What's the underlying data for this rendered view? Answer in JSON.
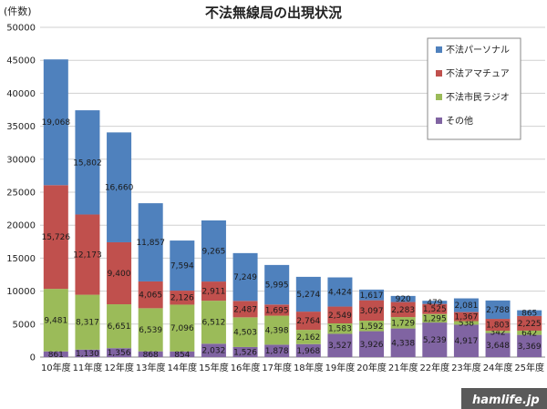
{
  "chart_data": {
    "type": "bar",
    "stacked": true,
    "title": "不法無線局の出現状況",
    "ylabel": "(件数)",
    "xlabel": "",
    "ylim": [
      0,
      50000
    ],
    "yticks": [
      0,
      5000,
      10000,
      15000,
      20000,
      25000,
      30000,
      35000,
      40000,
      45000,
      50000
    ],
    "grid": true,
    "legend_position": "top-right",
    "categories": [
      "10年度",
      "11年度",
      "12年度",
      "13年度",
      "14年度",
      "15年度",
      "16年度",
      "17年度",
      "18年度",
      "19年度",
      "20年度",
      "21年度",
      "22年度",
      "23年度",
      "24年度",
      "25年度"
    ],
    "series": [
      {
        "name": "その他",
        "color": "#8064a2",
        "values": [
          861,
          1130,
          1356,
          868,
          854,
          2032,
          1526,
          1878,
          1968,
          3527,
          3926,
          4338,
          5239,
          4917,
          3648,
          3369
        ]
      },
      {
        "name": "不法市民ラジオ",
        "color": "#9bbb59",
        "values": [
          9481,
          8317,
          6651,
          6539,
          7096,
          6512,
          4503,
          4398,
          2162,
          1583,
          1592,
          1729,
          1295,
          538,
          342,
          642
        ]
      },
      {
        "name": "不法アマチュア",
        "color": "#c0504d",
        "values": [
          15726,
          12173,
          9400,
          4065,
          2126,
          2911,
          2487,
          1695,
          2764,
          2549,
          3097,
          2283,
          1525,
          1367,
          1803,
          2225
        ]
      },
      {
        "name": "不法パーソナル",
        "color": "#4f81bd",
        "values": [
          19068,
          15802,
          16660,
          11857,
          7594,
          9265,
          7249,
          5995,
          5274,
          4424,
          1617,
          920,
          479,
          2081,
          2788,
          865
        ]
      }
    ],
    "legend_order": [
      "不法パーソナル",
      "不法アマチュア",
      "不法市民ラジオ",
      "その他"
    ]
  },
  "watermark": {
    "text": "hamlife.jp"
  }
}
